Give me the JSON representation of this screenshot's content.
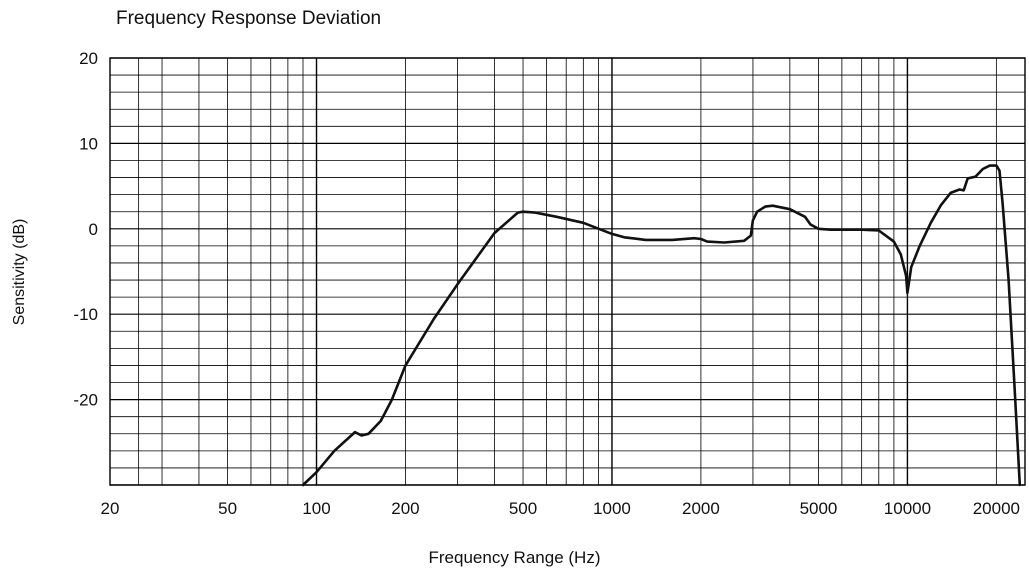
{
  "chart_data": {
    "type": "line",
    "title": "Frequency Response Deviation",
    "xlabel": "Frequency Range (Hz)",
    "ylabel": "Sensitivity (dB)",
    "x_scale": "log",
    "xlim": [
      20,
      25000
    ],
    "ylim": [
      -30,
      20
    ],
    "x_ticks": [
      20,
      50,
      100,
      200,
      500,
      1000,
      2000,
      5000,
      10000,
      20000
    ],
    "y_ticks": [
      20,
      10,
      0,
      -10,
      -20
    ],
    "grid": true,
    "series": [
      {
        "color": "#111111",
        "x": [
          90,
          100,
          115,
          135,
          142,
          150,
          165,
          180,
          200,
          250,
          300,
          400,
          480,
          500,
          550,
          650,
          800,
          1000,
          1100,
          1300,
          1600,
          1900,
          2000,
          2100,
          2400,
          2800,
          2950,
          3000,
          3100,
          3300,
          3500,
          4000,
          4500,
          4700,
          5000,
          5500,
          6000,
          7000,
          8000,
          9000,
          9500,
          9900,
          10000,
          10100,
          10300,
          11000,
          12000,
          13000,
          14000,
          15000,
          15500,
          16000,
          17000,
          18000,
          19000,
          20000,
          20500,
          21000,
          22000,
          23000,
          24000
        ],
        "y": [
          -30,
          -28.5,
          -26,
          -23.8,
          -24.2,
          -24,
          -22.5,
          -20,
          -16,
          -10.5,
          -6.5,
          -0.5,
          1.9,
          2,
          1.9,
          1.4,
          0.7,
          -0.6,
          -1,
          -1.3,
          -1.3,
          -1.1,
          -1.2,
          -1.5,
          -1.6,
          -1.4,
          -0.8,
          1,
          2,
          2.6,
          2.7,
          2.3,
          1.4,
          0.5,
          0,
          -0.1,
          -0.1,
          -0.1,
          -0.2,
          -1.5,
          -3,
          -5.5,
          -7.5,
          -6.5,
          -4.5,
          -2,
          0.7,
          2.8,
          4.2,
          4.6,
          4.5,
          5.9,
          6.1,
          7,
          7.4,
          7.4,
          6.8,
          3,
          -6,
          -18,
          -30
        ]
      }
    ]
  }
}
